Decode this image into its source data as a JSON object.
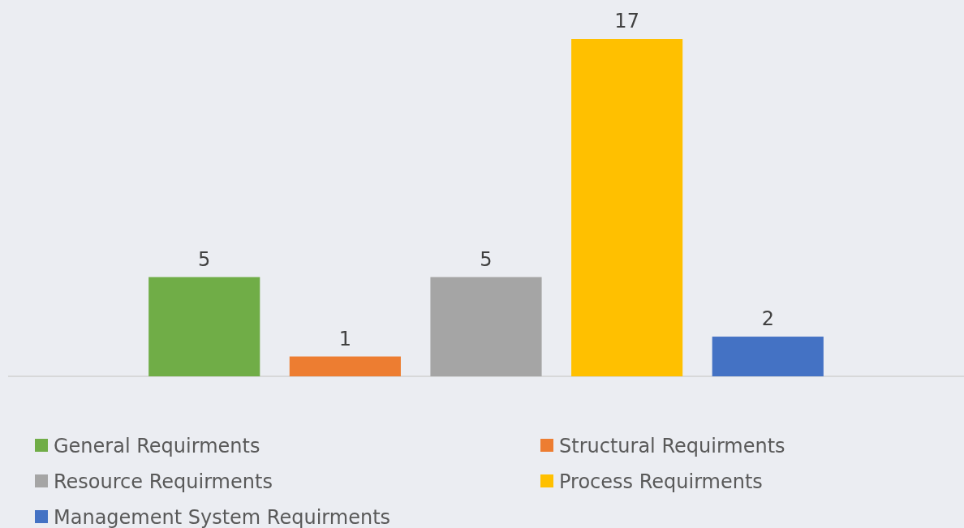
{
  "chart_data": {
    "type": "bar",
    "categories": [
      null
    ],
    "data_labels": true,
    "legend": "bottom",
    "series": [
      {
        "name": "General Requirments",
        "color": "#70ad47",
        "values": [
          5
        ]
      },
      {
        "name": "Structural Requirments",
        "color": "#ed7d31",
        "values": [
          1
        ]
      },
      {
        "name": "Resource Requirments",
        "color": "#a5a5a5",
        "values": [
          5
        ]
      },
      {
        "name": "Process Requirments",
        "color": "#ffc000",
        "values": [
          17
        ]
      },
      {
        "name": "Management System Requirments",
        "color": "#4472c4",
        "values": [
          2
        ]
      }
    ]
  }
}
